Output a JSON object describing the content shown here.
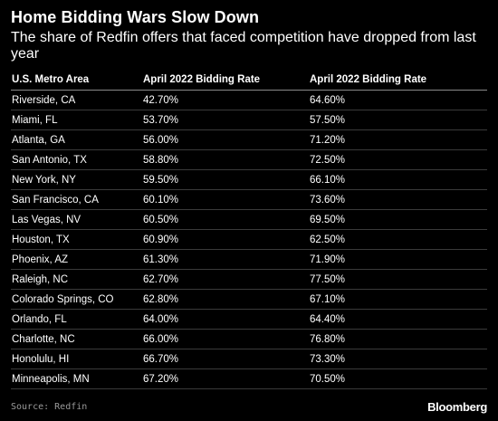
{
  "chart_data": {
    "type": "table",
    "title": "Home Bidding Wars Slow Down",
    "subtitle": "The share of Redfin offers that faced competition have dropped from last year",
    "columns": [
      "U.S. Metro Area",
      "April 2022 Bidding Rate",
      "April 2022 Bidding Rate"
    ],
    "rows": [
      [
        "Riverside, CA",
        "42.70%",
        "64.60%"
      ],
      [
        "Miami, FL",
        "53.70%",
        "57.50%"
      ],
      [
        "Atlanta, GA",
        "56.00%",
        "71.20%"
      ],
      [
        "San Antonio, TX",
        "58.80%",
        "72.50%"
      ],
      [
        "New York, NY",
        "59.50%",
        "66.10%"
      ],
      [
        "San Francisco, CA",
        "60.10%",
        "73.60%"
      ],
      [
        "Las Vegas, NV",
        "60.50%",
        "69.50%"
      ],
      [
        "Houston, TX",
        "60.90%",
        "62.50%"
      ],
      [
        "Phoenix, AZ",
        "61.30%",
        "71.90%"
      ],
      [
        "Raleigh, NC",
        "62.70%",
        "77.50%"
      ],
      [
        "Colorado Springs, CO",
        "62.80%",
        "67.10%"
      ],
      [
        "Orlando, FL",
        "64.00%",
        "64.40%"
      ],
      [
        "Charlotte, NC",
        "66.00%",
        "76.80%"
      ],
      [
        "Honolulu, HI",
        "66.70%",
        "73.30%"
      ],
      [
        "Minneapolis, MN",
        "67.20%",
        "70.50%"
      ]
    ],
    "source": "Source: Redfin"
  },
  "brand": {
    "logo_text": "Bloomberg",
    "background": "#000000",
    "text_color": "#ffffff"
  }
}
